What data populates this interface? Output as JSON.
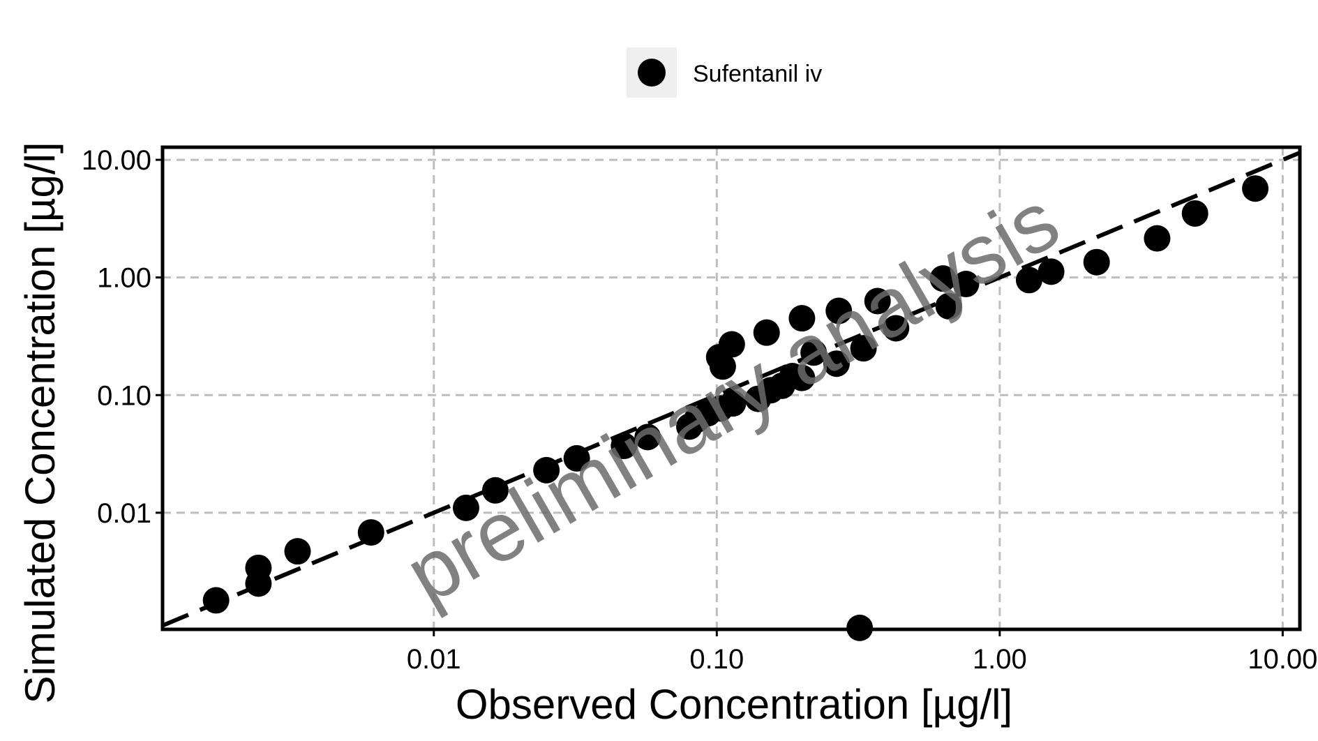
{
  "chart_data": {
    "type": "scatter",
    "xlabel": "Observed Concentration [µg/l]",
    "ylabel": "Simulated Concentration [µg/l]",
    "x_scale": "log",
    "y_scale": "log",
    "xlim": [
      0.0011,
      11.5
    ],
    "ylim": [
      0.00102,
      12.8
    ],
    "x_ticks": [
      0.01,
      0.1,
      1,
      10
    ],
    "x_tick_labels": [
      "0.01",
      "0.10",
      "1.00",
      "10.00"
    ],
    "y_ticks": [
      0.01,
      0.1,
      1,
      10
    ],
    "y_tick_labels": [
      "0.01",
      "0.10",
      "1.00",
      "10.00"
    ],
    "grid": true,
    "legend_position": "top-center",
    "identity_line": true,
    "watermark": "preliminary analysis",
    "series": [
      {
        "name": "Sufentanil iv",
        "color": "#000000",
        "points": [
          [
            0.0017,
            0.0018
          ],
          [
            0.0024,
            0.0025
          ],
          [
            0.0024,
            0.0034
          ],
          [
            0.0033,
            0.0047
          ],
          [
            0.006,
            0.0068
          ],
          [
            0.013,
            0.011
          ],
          [
            0.0165,
            0.0155
          ],
          [
            0.025,
            0.023
          ],
          [
            0.032,
            0.029
          ],
          [
            0.047,
            0.037
          ],
          [
            0.057,
            0.044
          ],
          [
            0.08,
            0.054
          ],
          [
            0.085,
            0.062
          ],
          [
            0.093,
            0.07
          ],
          [
            0.103,
            0.077
          ],
          [
            0.114,
            0.085
          ],
          [
            0.14,
            0.093
          ],
          [
            0.155,
            0.11
          ],
          [
            0.17,
            0.12
          ],
          [
            0.2,
            0.14
          ],
          [
            0.185,
            0.145
          ],
          [
            0.102,
            0.21
          ],
          [
            0.105,
            0.175
          ],
          [
            0.113,
            0.27
          ],
          [
            0.15,
            0.34
          ],
          [
            0.2,
            0.45
          ],
          [
            0.22,
            0.23
          ],
          [
            0.265,
            0.185
          ],
          [
            0.27,
            0.52
          ],
          [
            0.33,
            0.25
          ],
          [
            0.37,
            0.63
          ],
          [
            0.43,
            0.37
          ],
          [
            0.63,
            0.98
          ],
          [
            0.66,
            0.57
          ],
          [
            0.76,
            0.88
          ],
          [
            1.27,
            0.95
          ],
          [
            1.52,
            1.12
          ],
          [
            2.2,
            1.35
          ],
          [
            3.6,
            2.15
          ],
          [
            4.9,
            3.5
          ],
          [
            8.0,
            5.7
          ],
          [
            0.32,
            0.00105
          ]
        ]
      }
    ]
  }
}
